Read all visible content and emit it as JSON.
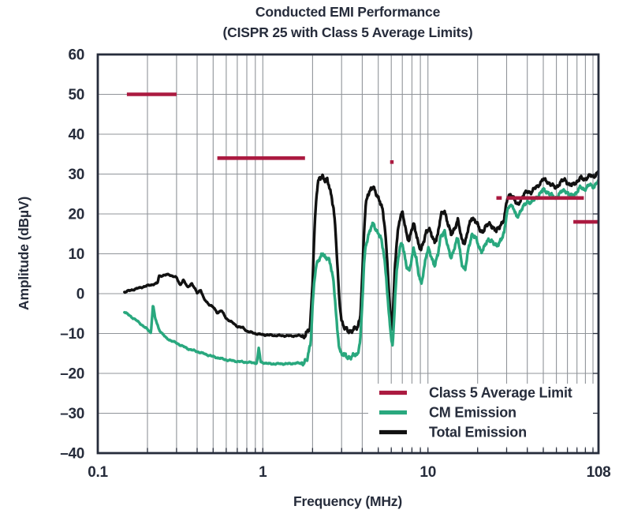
{
  "title": {
    "line1": "Conducted EMI Performance",
    "line2": "(CISPR 25 with Class 5 Average Limits)"
  },
  "colors": {
    "text": "#262c3b",
    "grid": "#909499",
    "axis": "#262c3b",
    "limit": "#ab1a40",
    "cm_emission": "#29a87e",
    "total_emission": "#111111",
    "background": "#ffffff"
  },
  "chart_data": {
    "type": "line",
    "title": "Conducted EMI Performance",
    "subtitle": "(CISPR 25 with Class 5 Average Limits)",
    "xlabel": "Frequency (MHz)",
    "ylabel": "Amplitude (dBµV)",
    "x_scale": "log",
    "xlim": [
      0.1,
      108
    ],
    "ylim": [
      -40,
      60
    ],
    "x_ticks": [
      {
        "label": "0.1",
        "value": 0.1
      },
      {
        "label": "1",
        "value": 1
      },
      {
        "label": "10",
        "value": 10
      },
      {
        "label": "108",
        "value": 108
      }
    ],
    "y_ticks": [
      {
        "label": "60",
        "value": 60
      },
      {
        "label": "50",
        "value": 50
      },
      {
        "label": "40",
        "value": 40
      },
      {
        "label": "30",
        "value": 30
      },
      {
        "label": "20",
        "value": 20
      },
      {
        "label": "10",
        "value": 10
      },
      {
        "label": "0",
        "value": 0
      },
      {
        "label": "–10",
        "value": -10
      },
      {
        "label": "–20",
        "value": -20
      },
      {
        "label": "–30",
        "value": -30
      },
      {
        "label": "–40",
        "value": -40
      }
    ],
    "grid": true,
    "legend": {
      "position": "bottom-right",
      "entries": [
        {
          "label": "Class 5 Average Limit",
          "color": "#ab1a40",
          "kind": "limit"
        },
        {
          "label": "CM Emission",
          "color": "#29a87e",
          "kind": "series"
        },
        {
          "label": "Total Emission",
          "color": "#111111",
          "kind": "series"
        }
      ]
    },
    "limit_segments": [
      {
        "from_mhz": 0.15,
        "to_mhz": 0.3,
        "dbuv": 50
      },
      {
        "from_mhz": 0.53,
        "to_mhz": 1.8,
        "dbuv": 34
      },
      {
        "from_mhz": 5.9,
        "to_mhz": 6.2,
        "dbuv": 33
      },
      {
        "from_mhz": 26,
        "to_mhz": 28,
        "dbuv": 24
      },
      {
        "from_mhz": 30,
        "to_mhz": 88,
        "dbuv": 24
      },
      {
        "from_mhz": 76,
        "to_mhz": 108,
        "dbuv": 18
      }
    ],
    "series": [
      {
        "name": "Total Emission",
        "color": "#111111",
        "points": [
          [
            0.145,
            0.4
          ],
          [
            0.17,
            1.2
          ],
          [
            0.2,
            2.0
          ],
          [
            0.23,
            2.6
          ],
          [
            0.235,
            4.4
          ],
          [
            0.27,
            4.8
          ],
          [
            0.3,
            4.0
          ],
          [
            0.315,
            2.2
          ],
          [
            0.33,
            3.4
          ],
          [
            0.35,
            1.6
          ],
          [
            0.37,
            2.6
          ],
          [
            0.4,
            0.2
          ],
          [
            0.42,
            1.0
          ],
          [
            0.44,
            -1.4
          ],
          [
            0.47,
            -2.6
          ],
          [
            0.5,
            -3.4
          ],
          [
            0.53,
            -4.8
          ],
          [
            0.56,
            -4.2
          ],
          [
            0.6,
            -6.2
          ],
          [
            0.65,
            -7.2
          ],
          [
            0.7,
            -8.2
          ],
          [
            0.76,
            -8.6
          ],
          [
            0.8,
            -9.4
          ],
          [
            0.9,
            -10.0
          ],
          [
            1.0,
            -10.3
          ],
          [
            1.2,
            -10.5
          ],
          [
            1.5,
            -10.6
          ],
          [
            1.8,
            -10.5
          ],
          [
            1.93,
            -9.0
          ],
          [
            2.0,
            3.0
          ],
          [
            2.05,
            15.0
          ],
          [
            2.1,
            23.0
          ],
          [
            2.15,
            27.0
          ],
          [
            2.2,
            29.0
          ],
          [
            2.3,
            29.8
          ],
          [
            2.38,
            28.2
          ],
          [
            2.45,
            28.4
          ],
          [
            2.52,
            27.0
          ],
          [
            2.6,
            25.0
          ],
          [
            2.68,
            21.5
          ],
          [
            2.75,
            16.0
          ],
          [
            2.82,
            8.0
          ],
          [
            2.9,
            -1.0
          ],
          [
            3.0,
            -6.5
          ],
          [
            3.1,
            -8.6
          ],
          [
            3.25,
            -9.3
          ],
          [
            3.5,
            -9.2
          ],
          [
            3.75,
            -8.6
          ],
          [
            3.9,
            -5.0
          ],
          [
            4.0,
            4.0
          ],
          [
            4.1,
            15.0
          ],
          [
            4.2,
            22.0
          ],
          [
            4.32,
            25.0
          ],
          [
            4.5,
            26.3
          ],
          [
            4.65,
            26.5
          ],
          [
            4.8,
            25.4
          ],
          [
            4.95,
            24.6
          ],
          [
            5.1,
            23.6
          ],
          [
            5.3,
            21.0
          ],
          [
            5.5,
            16.0
          ],
          [
            5.7,
            7.0
          ],
          [
            5.85,
            -2.0
          ],
          [
            6.0,
            -8.0
          ],
          [
            6.08,
            -9.6
          ],
          [
            6.18,
            -3.0
          ],
          [
            6.3,
            6.0
          ],
          [
            6.45,
            12.5
          ],
          [
            6.6,
            16.5
          ],
          [
            6.8,
            19.2
          ],
          [
            7.0,
            20.0
          ],
          [
            7.2,
            18.0
          ],
          [
            7.45,
            15.0
          ],
          [
            7.7,
            13.2
          ],
          [
            7.95,
            15.6
          ],
          [
            8.2,
            17.6
          ],
          [
            8.5,
            15.4
          ],
          [
            8.8,
            12.0
          ],
          [
            9.1,
            10.6
          ],
          [
            9.4,
            13.0
          ],
          [
            9.75,
            15.8
          ],
          [
            10.1,
            16.2
          ],
          [
            10.5,
            14.6
          ],
          [
            11.0,
            13.2
          ],
          [
            11.5,
            14.8
          ],
          [
            12.0,
            19.6
          ],
          [
            12.6,
            21.2
          ],
          [
            13.2,
            17.4
          ],
          [
            13.8,
            14.8
          ],
          [
            14.5,
            16.6
          ],
          [
            15.2,
            18.2
          ],
          [
            16.0,
            13.8
          ],
          [
            16.8,
            12.8
          ],
          [
            17.6,
            16.2
          ],
          [
            18.4,
            19.2
          ],
          [
            19.2,
            18.6
          ],
          [
            20.0,
            17.0
          ],
          [
            21.0,
            15.6
          ],
          [
            22.0,
            16.2
          ],
          [
            23.0,
            17.2
          ],
          [
            24.0,
            17.6
          ],
          [
            25.0,
            16.4
          ],
          [
            26.0,
            15.4
          ],
          [
            27.5,
            17.4
          ],
          [
            29.0,
            18.6
          ],
          [
            30.2,
            23.6
          ],
          [
            31.5,
            25.2
          ],
          [
            33.0,
            24.0
          ],
          [
            34.5,
            22.2
          ],
          [
            36.0,
            23.2
          ],
          [
            38.0,
            24.6
          ],
          [
            40.0,
            25.8
          ],
          [
            42.5,
            25.4
          ],
          [
            45.0,
            26.6
          ],
          [
            47.5,
            27.6
          ],
          [
            50.0,
            28.6
          ],
          [
            53.0,
            28.2
          ],
          [
            56.0,
            27.2
          ],
          [
            59.0,
            26.6
          ],
          [
            62.0,
            27.4
          ],
          [
            65.0,
            28.2
          ],
          [
            68.0,
            28.6
          ],
          [
            71.0,
            27.6
          ],
          [
            74.0,
            27.0
          ],
          [
            77.0,
            27.6
          ],
          [
            80.0,
            28.2
          ],
          [
            84.0,
            29.0
          ],
          [
            88.0,
            28.6
          ],
          [
            92.0,
            29.2
          ],
          [
            96.0,
            29.6
          ],
          [
            100.0,
            29.2
          ],
          [
            104.0,
            30.0
          ],
          [
            108.0,
            30.6
          ]
        ]
      },
      {
        "name": "CM Emission",
        "color": "#29a87e",
        "points": [
          [
            0.145,
            -4.6
          ],
          [
            0.17,
            -6.6
          ],
          [
            0.195,
            -8.6
          ],
          [
            0.21,
            -9.8
          ],
          [
            0.216,
            -2.6
          ],
          [
            0.222,
            -6.0
          ],
          [
            0.235,
            -9.0
          ],
          [
            0.26,
            -11.2
          ],
          [
            0.3,
            -12.4
          ],
          [
            0.35,
            -13.8
          ],
          [
            0.42,
            -14.8
          ],
          [
            0.5,
            -15.8
          ],
          [
            0.6,
            -16.6
          ],
          [
            0.7,
            -17.0
          ],
          [
            0.85,
            -17.3
          ],
          [
            0.92,
            -17.4
          ],
          [
            0.945,
            -13.6
          ],
          [
            0.97,
            -17.2
          ],
          [
            1.1,
            -17.6
          ],
          [
            1.4,
            -17.6
          ],
          [
            1.7,
            -17.4
          ],
          [
            1.85,
            -17.0
          ],
          [
            1.95,
            -12.0
          ],
          [
            2.0,
            -3.0
          ],
          [
            2.05,
            3.0
          ],
          [
            2.1,
            6.5
          ],
          [
            2.2,
            9.0
          ],
          [
            2.3,
            10.4
          ],
          [
            2.4,
            8.4
          ],
          [
            2.5,
            9.0
          ],
          [
            2.58,
            7.4
          ],
          [
            2.66,
            4.0
          ],
          [
            2.74,
            -2.0
          ],
          [
            2.82,
            -9.0
          ],
          [
            2.9,
            -13.0
          ],
          [
            3.0,
            -15.2
          ],
          [
            3.2,
            -15.8
          ],
          [
            3.5,
            -15.8
          ],
          [
            3.75,
            -15.2
          ],
          [
            3.9,
            -11.0
          ],
          [
            4.0,
            -3.0
          ],
          [
            4.1,
            7.0
          ],
          [
            4.2,
            12.0
          ],
          [
            4.35,
            14.8
          ],
          [
            4.55,
            16.8
          ],
          [
            4.7,
            17.2
          ],
          [
            4.85,
            16.0
          ],
          [
            5.0,
            15.6
          ],
          [
            5.2,
            13.6
          ],
          [
            5.4,
            10.0
          ],
          [
            5.6,
            4.0
          ],
          [
            5.8,
            -5.0
          ],
          [
            6.0,
            -11.5
          ],
          [
            6.1,
            -13.8
          ],
          [
            6.2,
            -9.0
          ],
          [
            6.32,
            -1.0
          ],
          [
            6.45,
            5.0
          ],
          [
            6.6,
            9.0
          ],
          [
            6.8,
            11.6
          ],
          [
            7.0,
            12.4
          ],
          [
            7.2,
            10.0
          ],
          [
            7.45,
            7.0
          ],
          [
            7.7,
            5.4
          ],
          [
            7.95,
            8.0
          ],
          [
            8.2,
            11.8
          ],
          [
            8.5,
            9.0
          ],
          [
            8.8,
            4.6
          ],
          [
            9.1,
            2.0
          ],
          [
            9.4,
            5.6
          ],
          [
            9.75,
            9.8
          ],
          [
            10.1,
            11.0
          ],
          [
            10.5,
            9.0
          ],
          [
            11.0,
            7.4
          ],
          [
            11.5,
            9.6
          ],
          [
            12.0,
            14.6
          ],
          [
            12.6,
            16.0
          ],
          [
            13.2,
            11.4
          ],
          [
            13.8,
            9.0
          ],
          [
            14.5,
            11.8
          ],
          [
            15.2,
            13.8
          ],
          [
            16.0,
            8.0
          ],
          [
            16.8,
            5.8
          ],
          [
            17.6,
            11.0
          ],
          [
            18.4,
            15.0
          ],
          [
            19.2,
            14.4
          ],
          [
            20.0,
            12.4
          ],
          [
            21.0,
            10.8
          ],
          [
            22.0,
            11.6
          ],
          [
            23.0,
            13.2
          ],
          [
            24.0,
            13.8
          ],
          [
            25.0,
            12.6
          ],
          [
            26.0,
            11.6
          ],
          [
            27.5,
            13.6
          ],
          [
            29.0,
            15.0
          ],
          [
            30.2,
            20.8
          ],
          [
            31.5,
            22.6
          ],
          [
            33.0,
            21.2
          ],
          [
            34.5,
            19.2
          ],
          [
            36.0,
            20.4
          ],
          [
            38.0,
            21.8
          ],
          [
            40.0,
            23.2
          ],
          [
            42.5,
            22.8
          ],
          [
            45.0,
            24.0
          ],
          [
            47.5,
            25.0
          ],
          [
            50.0,
            26.0
          ],
          [
            53.0,
            25.6
          ],
          [
            56.0,
            24.6
          ],
          [
            59.0,
            24.0
          ],
          [
            62.0,
            24.8
          ],
          [
            65.0,
            25.6
          ],
          [
            68.0,
            26.0
          ],
          [
            71.0,
            25.0
          ],
          [
            74.0,
            24.4
          ],
          [
            77.0,
            25.0
          ],
          [
            80.0,
            25.6
          ],
          [
            84.0,
            26.6
          ],
          [
            88.0,
            26.2
          ],
          [
            92.0,
            26.8
          ],
          [
            96.0,
            27.2
          ],
          [
            100.0,
            26.8
          ],
          [
            104.0,
            27.6
          ],
          [
            108.0,
            28.2
          ]
        ]
      }
    ]
  }
}
